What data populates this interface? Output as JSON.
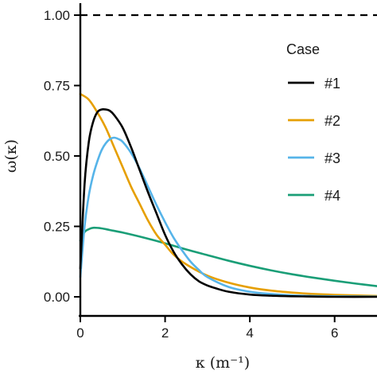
{
  "chart_data": {
    "type": "line",
    "title": "",
    "xlabel": "κ (m⁻¹)",
    "ylabel": "ω(κ)",
    "xlim": [
      0,
      7
    ],
    "ylim": [
      0,
      1.0
    ],
    "xticks": [
      "0",
      "2",
      "4",
      "6"
    ],
    "xtick_values": [
      0,
      2,
      4,
      6
    ],
    "yticks": [
      "0.00",
      "0.25",
      "0.50",
      "0.75",
      "1.00"
    ],
    "ytick_values": [
      0,
      0.25,
      0.5,
      0.75,
      1.0
    ],
    "grid": false,
    "legend": {
      "title": "Case",
      "placement": "right"
    },
    "reference_line": {
      "y": 1.0,
      "style": "dashed",
      "color": "#000000"
    },
    "series": [
      {
        "name": "#1",
        "color": "#000000",
        "x": [
          0.0,
          0.1,
          0.2,
          0.3,
          0.4,
          0.5,
          0.6,
          0.7,
          0.8,
          1.0,
          1.2,
          1.4,
          1.6,
          1.8,
          2.0,
          2.2,
          2.4,
          2.6,
          2.8,
          3.0,
          3.2,
          3.5,
          4.0,
          4.5,
          5.0,
          5.5,
          6.0,
          7.0
        ],
        "y": [
          0.1,
          0.4,
          0.55,
          0.62,
          0.655,
          0.665,
          0.665,
          0.66,
          0.645,
          0.6,
          0.53,
          0.45,
          0.37,
          0.295,
          0.22,
          0.16,
          0.115,
          0.08,
          0.055,
          0.04,
          0.03,
          0.018,
          0.008,
          0.004,
          0.002,
          0.001,
          0.0,
          0.0
        ]
      },
      {
        "name": "#2",
        "color": "#E69F00",
        "x": [
          0.0,
          0.2,
          0.4,
          0.6,
          0.8,
          1.0,
          1.2,
          1.4,
          1.6,
          1.8,
          2.0,
          2.2,
          2.5,
          3.0,
          3.5,
          4.0,
          4.5,
          5.0,
          5.5,
          6.0,
          7.0
        ],
        "y": [
          0.72,
          0.7,
          0.655,
          0.6,
          0.53,
          0.46,
          0.39,
          0.33,
          0.27,
          0.22,
          0.185,
          0.15,
          0.115,
          0.075,
          0.05,
          0.033,
          0.022,
          0.015,
          0.01,
          0.007,
          0.003
        ]
      },
      {
        "name": "#3",
        "color": "#56B4E9",
        "x": [
          0.0,
          0.1,
          0.2,
          0.3,
          0.4,
          0.5,
          0.6,
          0.7,
          0.8,
          0.9,
          1.0,
          1.2,
          1.4,
          1.6,
          1.8,
          2.0,
          2.2,
          2.4,
          2.6,
          2.8,
          3.0,
          3.5,
          4.0,
          4.5,
          5.0,
          5.5,
          6.0,
          7.0
        ],
        "y": [
          0.07,
          0.25,
          0.36,
          0.43,
          0.48,
          0.52,
          0.545,
          0.56,
          0.565,
          0.56,
          0.55,
          0.51,
          0.455,
          0.39,
          0.325,
          0.265,
          0.21,
          0.165,
          0.125,
          0.095,
          0.07,
          0.035,
          0.018,
          0.01,
          0.005,
          0.003,
          0.002,
          0.001
        ]
      },
      {
        "name": "#4",
        "color": "#1A9E77",
        "x": [
          0.0,
          0.1,
          0.2,
          0.3,
          0.5,
          0.7,
          1.0,
          1.5,
          2.0,
          2.5,
          3.0,
          3.5,
          4.0,
          4.5,
          5.0,
          5.5,
          6.0,
          6.5,
          7.0
        ],
        "y": [
          0.2,
          0.23,
          0.24,
          0.245,
          0.243,
          0.237,
          0.228,
          0.21,
          0.19,
          0.168,
          0.148,
          0.128,
          0.11,
          0.094,
          0.08,
          0.068,
          0.057,
          0.047,
          0.038
        ]
      }
    ]
  }
}
